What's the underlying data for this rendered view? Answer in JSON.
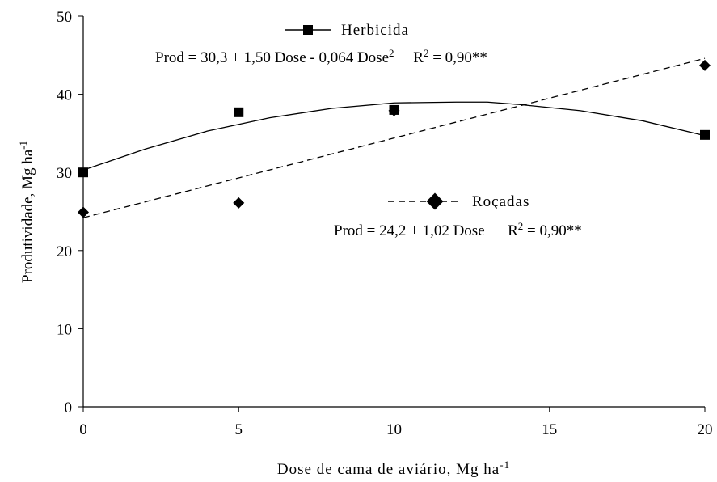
{
  "chart_data": {
    "type": "scatter",
    "x_label": [
      {
        "text": "Dose de cama de aviário, Mg ha",
        "sup": false
      },
      {
        "text": "-1",
        "sup": true
      }
    ],
    "y_label": [
      {
        "text": "Produtividade, Mg ha",
        "sup": false
      },
      {
        "text": "-1",
        "sup": true
      }
    ],
    "xlim": [
      0,
      20
    ],
    "xticks": [
      0,
      5,
      10,
      15,
      20
    ],
    "ylim": [
      0,
      50
    ],
    "yticks": [
      0,
      10,
      20,
      30,
      40,
      50
    ],
    "series": [
      {
        "name": "Herbicida",
        "color": "#000000",
        "marker": "square",
        "dash": false,
        "x": [
          0,
          5,
          10,
          20
        ],
        "values": [
          30,
          37.7,
          38,
          34.8
        ],
        "fit": {
          "x": [
            0,
            2,
            4,
            6,
            8,
            10,
            12,
            13,
            14,
            16,
            18,
            20
          ],
          "values": [
            30.3,
            33.0,
            35.3,
            37.0,
            38.2,
            38.9,
            39.0,
            39.0,
            38.7,
            37.9,
            36.6,
            34.7
          ]
        },
        "equation": [
          {
            "text": "Prod = 30,3 + 1,50 Dose - 0,064 Dose",
            "sup": false
          },
          {
            "text": "2",
            "sup": true
          },
          {
            "text": "     R",
            "sup": false
          },
          {
            "text": "2",
            "sup": true
          },
          {
            "text": " = 0,90**",
            "sup": false
          }
        ]
      },
      {
        "name": "Roçadas",
        "color": "#000000",
        "marker": "diamond",
        "dash": true,
        "x": [
          0,
          5,
          10,
          20
        ],
        "values": [
          24.9,
          26.1,
          37.9,
          43.7
        ],
        "fit": {
          "x": [
            0,
            20
          ],
          "values": [
            24.2,
            44.6
          ]
        },
        "equation": [
          {
            "text": "Prod = 24,2 + 1,02 Dose      R",
            "sup": false
          },
          {
            "text": "2",
            "sup": true
          },
          {
            "text": " = 0,90**",
            "sup": false
          }
        ]
      }
    ]
  }
}
